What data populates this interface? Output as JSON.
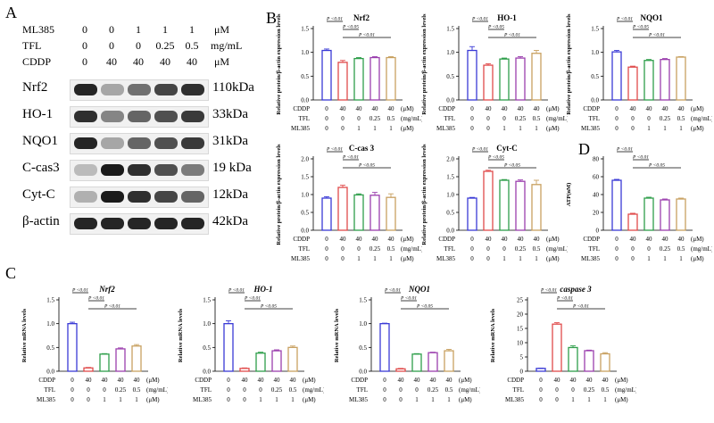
{
  "panel_labels": {
    "a": "A",
    "b": "B",
    "c": "C",
    "d": "D"
  },
  "western_blot": {
    "conditions": [
      {
        "label": "ML385",
        "values": [
          "0",
          "0",
          "1",
          "1",
          "1"
        ],
        "unit": "μM"
      },
      {
        "label": "TFL",
        "values": [
          "0",
          "0",
          "0",
          "0.25",
          "0.5"
        ],
        "unit": "mg/mL"
      },
      {
        "label": "CDDP",
        "values": [
          "0",
          "40",
          "40",
          "40",
          "40"
        ],
        "unit": "μM"
      }
    ],
    "rows": [
      {
        "protein": "Nrf2",
        "kda": "110kDa",
        "intensity": [
          0.9,
          0.3,
          0.55,
          0.75,
          0.85
        ]
      },
      {
        "protein": "HO-1",
        "kda": "33kDa",
        "intensity": [
          0.85,
          0.45,
          0.6,
          0.7,
          0.8
        ]
      },
      {
        "protein": "NQO1",
        "kda": "31kDa",
        "intensity": [
          0.9,
          0.3,
          0.6,
          0.7,
          0.8
        ]
      },
      {
        "protein": "C-cas3",
        "kda": "19 kDa",
        "intensity": [
          0.2,
          0.95,
          0.85,
          0.7,
          0.5
        ]
      },
      {
        "protein": "Cyt-C",
        "kda": "12kDa",
        "intensity": [
          0.25,
          0.95,
          0.85,
          0.75,
          0.6
        ]
      },
      {
        "protein": "β-actin",
        "kda": "42kDa",
        "intensity": [
          0.9,
          0.9,
          0.9,
          0.9,
          0.9
        ]
      }
    ]
  },
  "colors": [
    "#3a3ad6",
    "#e04a4a",
    "#2e9e4a",
    "#9b3fae",
    "#c8a060"
  ],
  "x_table_labels": [
    "CDDP",
    "TFL",
    "ML385"
  ],
  "x_table_units": [
    "(μM)",
    "(mg/mL)",
    "(μM)"
  ],
  "x_table_values": [
    [
      "0",
      "40",
      "40",
      "40",
      "40"
    ],
    [
      "0",
      "0",
      "0",
      "0.25",
      "0.5"
    ],
    [
      "0",
      "0",
      "1",
      "1",
      "1"
    ]
  ],
  "chart_data": [
    {
      "id": "b-nrf2",
      "panel": "B",
      "type": "bar",
      "title": "Nrf2",
      "ylabel": "Relative protein/β-actin expression levels",
      "ylim": [
        0,
        1.5
      ],
      "yticks": [
        "0.0",
        "0.5",
        "1.0",
        "1.5"
      ],
      "values": [
        1.04,
        0.79,
        0.87,
        0.89,
        0.89
      ],
      "errors": [
        0.03,
        0.04,
        0.02,
        0.02,
        0.02
      ],
      "annotations": [
        "P <0.01",
        "P <0.05",
        "P <0.01"
      ],
      "title_italic": false
    },
    {
      "id": "b-ho1",
      "panel": "B",
      "type": "bar",
      "title": "HO-1",
      "ylabel": "Relative protein/β-actin expression levels",
      "ylim": [
        0,
        1.5
      ],
      "yticks": [
        "0.0",
        "0.5",
        "1.0",
        "1.5"
      ],
      "values": [
        1.04,
        0.73,
        0.86,
        0.88,
        0.98
      ],
      "errors": [
        0.08,
        0.03,
        0.02,
        0.03,
        0.06
      ],
      "annotations": [
        "P <0.01",
        "P <0.05",
        "P <0.01"
      ],
      "title_italic": false
    },
    {
      "id": "b-nqo1",
      "panel": "B",
      "type": "bar",
      "title": "NQO1",
      "ylabel": "Relative protein/β-actin expression levels",
      "ylim": [
        0,
        1.5
      ],
      "yticks": [
        "0.0",
        "0.5",
        "1.0",
        "1.5"
      ],
      "values": [
        1.01,
        0.69,
        0.83,
        0.85,
        0.9
      ],
      "errors": [
        0.03,
        0.02,
        0.02,
        0.02,
        0.01
      ],
      "annotations": [
        "P <0.01",
        "P <0.05",
        "P <0.01"
      ],
      "title_italic": false
    },
    {
      "id": "b-ccas3",
      "panel": "B",
      "type": "bar",
      "title": "C-cas 3",
      "ylabel": "Relative protein/β-actin expression levels",
      "ylim": [
        0,
        2.0
      ],
      "yticks": [
        "0.0",
        "0.5",
        "1.0",
        "1.5",
        "2.0"
      ],
      "values": [
        0.9,
        1.2,
        0.99,
        0.98,
        0.92
      ],
      "errors": [
        0.04,
        0.06,
        0.03,
        0.08,
        0.1
      ],
      "annotations": [
        "P <0.01",
        "P <0.01",
        "P <0.05"
      ],
      "title_italic": false
    },
    {
      "id": "b-cytc",
      "panel": "B",
      "type": "bar",
      "title": "Cyt-C",
      "ylabel": "Relative protein/β-actin expression levels",
      "ylim": [
        0,
        2.0
      ],
      "yticks": [
        "0.0",
        "0.5",
        "1.0",
        "1.5",
        "2.0"
      ],
      "values": [
        0.9,
        1.65,
        1.4,
        1.37,
        1.28
      ],
      "errors": [
        0.02,
        0.03,
        0.02,
        0.04,
        0.12
      ],
      "annotations": [
        "P <0.01",
        "P <0.05",
        "P <0.05"
      ],
      "title_italic": false
    },
    {
      "id": "d-atp",
      "panel": "D",
      "type": "bar",
      "title": "",
      "ylabel": "ATP(nM)",
      "ylim": [
        0,
        80
      ],
      "yticks": [
        "0",
        "20",
        "40",
        "60",
        "80"
      ],
      "values": [
        56,
        18,
        36,
        34,
        35
      ],
      "errors": [
        1,
        1,
        1,
        1,
        1
      ],
      "annotations": [
        "P <0.01",
        "P <0.01",
        "P <0.05"
      ],
      "title_italic": false
    },
    {
      "id": "c-nrf2",
      "panel": "C",
      "type": "bar",
      "title": "Nrf2",
      "ylabel": "Relative mRNA levels",
      "ylim": [
        0,
        1.5
      ],
      "yticks": [
        "0.0",
        "0.5",
        "1.0",
        "1.5"
      ],
      "values": [
        1.0,
        0.07,
        0.36,
        0.47,
        0.53
      ],
      "errors": [
        0.03,
        0.01,
        0.01,
        0.02,
        0.03
      ],
      "annotations": [
        "P <0.01",
        "P <0.01",
        "P <0.01"
      ],
      "title_italic": true
    },
    {
      "id": "c-ho1",
      "panel": "C",
      "type": "bar",
      "title": "HO-1",
      "ylabel": "Relative mRNA levels",
      "ylim": [
        0,
        1.5
      ],
      "yticks": [
        "0.0",
        "0.5",
        "1.0",
        "1.5"
      ],
      "values": [
        1.0,
        0.06,
        0.38,
        0.43,
        0.5
      ],
      "errors": [
        0.06,
        0.01,
        0.02,
        0.02,
        0.03
      ],
      "annotations": [
        "P <0.01",
        "P <0.01",
        "P <0.05"
      ],
      "title_italic": true
    },
    {
      "id": "c-nqo1",
      "panel": "C",
      "type": "bar",
      "title": "NQO1",
      "ylabel": "Relative mRNA levels",
      "ylim": [
        0,
        1.5
      ],
      "yticks": [
        "0.0",
        "0.5",
        "1.0",
        "1.5"
      ],
      "values": [
        1.0,
        0.05,
        0.36,
        0.39,
        0.43
      ],
      "errors": [
        0.01,
        0.01,
        0.01,
        0.01,
        0.03
      ],
      "annotations": [
        "P <0.01",
        "P <0.01",
        "P <0.05"
      ],
      "title_italic": true
    },
    {
      "id": "c-casp3",
      "panel": "C",
      "type": "bar",
      "title": "caspase 3",
      "ylabel": "Relative mRNA levels",
      "ylim": [
        0,
        25
      ],
      "yticks": [
        "0",
        "5",
        "10",
        "15",
        "20",
        "25"
      ],
      "values": [
        1.0,
        16.5,
        8.3,
        7.2,
        6.1
      ],
      "errors": [
        0.1,
        0.5,
        0.6,
        0.2,
        0.4
      ],
      "annotations": [
        "P <0.01",
        "P <0.01",
        "P <0.01"
      ],
      "title_italic": true
    }
  ]
}
